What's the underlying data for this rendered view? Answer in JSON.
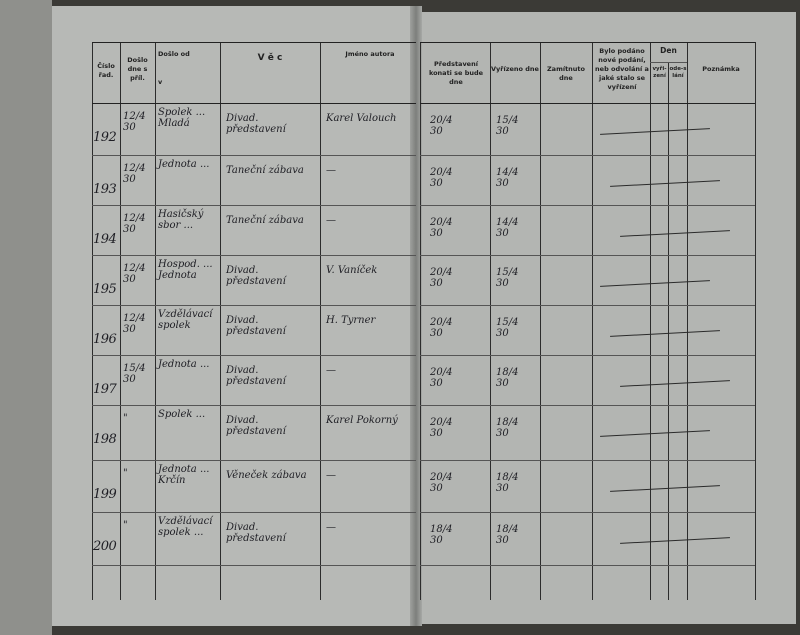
{
  "header": {
    "cislo": "Číslo řad.",
    "doslo_dne": "Došlo dne s příl.",
    "doslo_od": "Došlo od",
    "doslo_v": "v",
    "vec": "V ě c",
    "jmeno_autora": "Jméno autora",
    "predstaveni": "Představení konati se bude dne",
    "vyrizeno": "Vyřízeno dne",
    "zamitnuto": "Zamítnuto dne",
    "podano": "Bylo podáno nové podání, neb odvolání a jaké stalo se vyřízení",
    "den": "Den",
    "den_vyrizeni": "vyři-zení",
    "den_odeslani": "ode-slání",
    "poznamka": "Poznámka"
  },
  "rows": [
    {
      "no": "192",
      "received": "12/4 30",
      "from": "Spolek ... Mladá",
      "subject": "Divad. představení",
      "author": "Karel Valouch",
      "show": "20/4 30",
      "done": "15/4 30"
    },
    {
      "no": "193",
      "received": "12/4 30",
      "from": "Jednota ...",
      "subject": "Taneční zábava",
      "author": "—",
      "show": "20/4 30",
      "done": "14/4 30"
    },
    {
      "no": "194",
      "received": "12/4 30",
      "from": "Hasičský sbor ...",
      "subject": "Taneční zábava",
      "author": "—",
      "show": "20/4 30",
      "done": "14/4 30"
    },
    {
      "no": "195",
      "received": "12/4 30",
      "from": "Hospod. ... Jednota",
      "subject": "Divad. představení",
      "author": "V. Vaníček",
      "show": "20/4 30",
      "done": "15/4 30"
    },
    {
      "no": "196",
      "received": "12/4 30",
      "from": "Vzdělávací spolek",
      "subject": "Divad. představení",
      "author": "H. Tyrner",
      "show": "20/4 30",
      "done": "15/4 30"
    },
    {
      "no": "197",
      "received": "15/4 30",
      "from": "Jednota ...",
      "subject": "Divad. představení",
      "author": "—",
      "show": "20/4 30",
      "done": "18/4 30"
    },
    {
      "no": "198",
      "received": "\"",
      "from": "Spolek ...",
      "subject": "Divad. představení",
      "author": "Karel Pokorný",
      "show": "20/4 30",
      "done": "18/4 30"
    },
    {
      "no": "199",
      "received": "\"",
      "from": "Jednota ... Krčín",
      "subject": "Věneček zábava",
      "author": "—",
      "show": "20/4 30",
      "done": "18/4 30"
    },
    {
      "no": "200",
      "received": "\"",
      "from": "Vzdělávací spolek ...",
      "subject": "Divad. představení",
      "author": "—",
      "show": "18/4 30",
      "done": "18/4 30"
    }
  ]
}
